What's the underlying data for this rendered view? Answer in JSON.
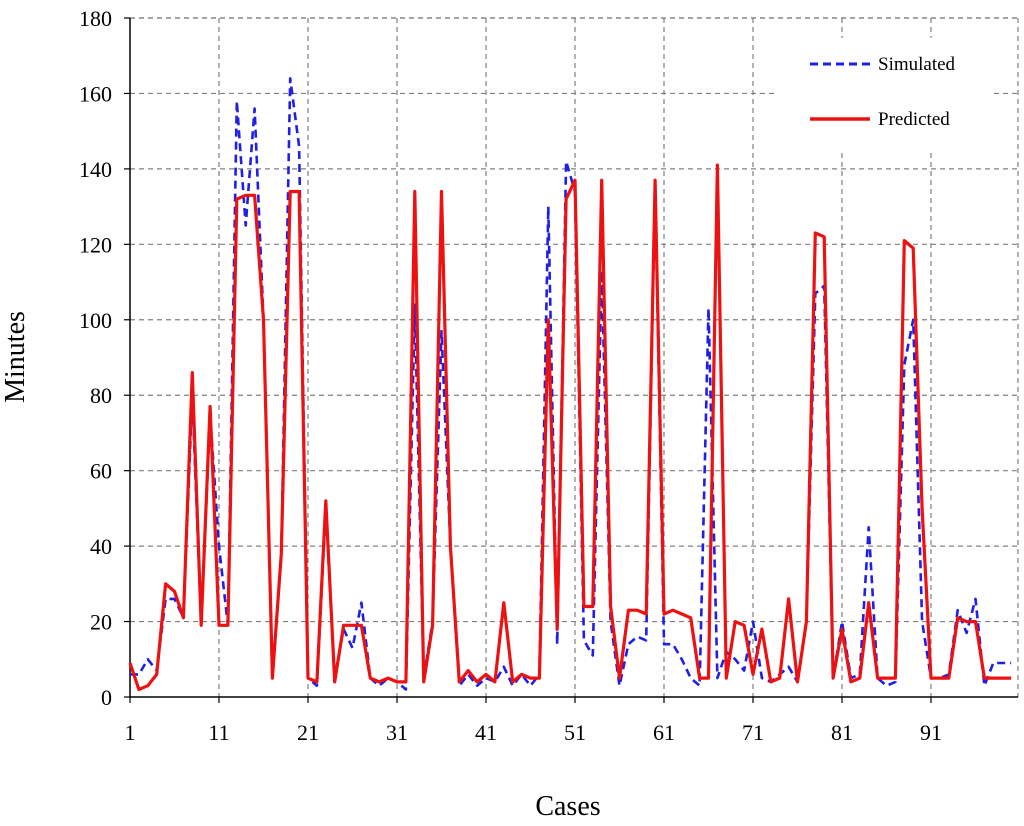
{
  "chart_data": {
    "type": "line",
    "title": "",
    "xlabel": "Cases",
    "ylabel": "Minutes",
    "xlim": [
      1,
      100
    ],
    "ylim": [
      0,
      180
    ],
    "x_ticks": [
      1,
      11,
      21,
      31,
      41,
      51,
      61,
      71,
      81,
      91
    ],
    "y_ticks": [
      0,
      20,
      40,
      60,
      80,
      100,
      120,
      140,
      160,
      180
    ],
    "grid": true,
    "legend_position": "top-right",
    "series": [
      {
        "name": "Simulated",
        "color": "#1f1fe6",
        "style": "dashed",
        "values": [
          6,
          6,
          10,
          7,
          26,
          26,
          21,
          80,
          19,
          75,
          40,
          19,
          158,
          125,
          156,
          100,
          5,
          38,
          164,
          146,
          5,
          3,
          50,
          5,
          18,
          13,
          25,
          5,
          3,
          5,
          4,
          2,
          104,
          5,
          20,
          97,
          40,
          3,
          6,
          3,
          5,
          4,
          8,
          3,
          6,
          3,
          6,
          130,
          14,
          142,
          134,
          15,
          11,
          113,
          20,
          3,
          14,
          16,
          15,
          136,
          14,
          14,
          10,
          5,
          3,
          103,
          5,
          12,
          10,
          7,
          20,
          5,
          4,
          6,
          8,
          4,
          20,
          107,
          109,
          5,
          20,
          5,
          6,
          45,
          5,
          3,
          4,
          88,
          100,
          20,
          5,
          5,
          6,
          23,
          17,
          26,
          3,
          9,
          9,
          9
        ]
      },
      {
        "name": "Predicted",
        "color": "#ee1111",
        "style": "solid",
        "values": [
          9,
          2,
          3,
          6,
          30,
          28,
          21,
          86,
          19,
          77,
          19,
          19,
          132,
          133,
          133,
          100,
          5,
          38,
          134,
          134,
          5,
          4,
          52,
          4,
          19,
          19,
          19,
          5,
          4,
          5,
          4,
          4,
          134,
          4,
          19,
          134,
          40,
          4,
          7,
          4,
          6,
          4,
          25,
          4,
          6,
          5,
          5,
          100,
          18,
          132,
          137,
          24,
          24,
          137,
          24,
          5,
          23,
          23,
          22,
          137,
          22,
          23,
          22,
          21,
          5,
          5,
          141,
          5,
          20,
          19,
          6,
          18,
          4,
          5,
          26,
          4,
          20,
          123,
          122,
          5,
          18,
          4,
          5,
          25,
          5,
          5,
          5,
          121,
          119,
          50,
          5,
          5,
          5,
          21,
          20,
          20,
          5,
          5,
          5,
          5
        ]
      }
    ]
  }
}
